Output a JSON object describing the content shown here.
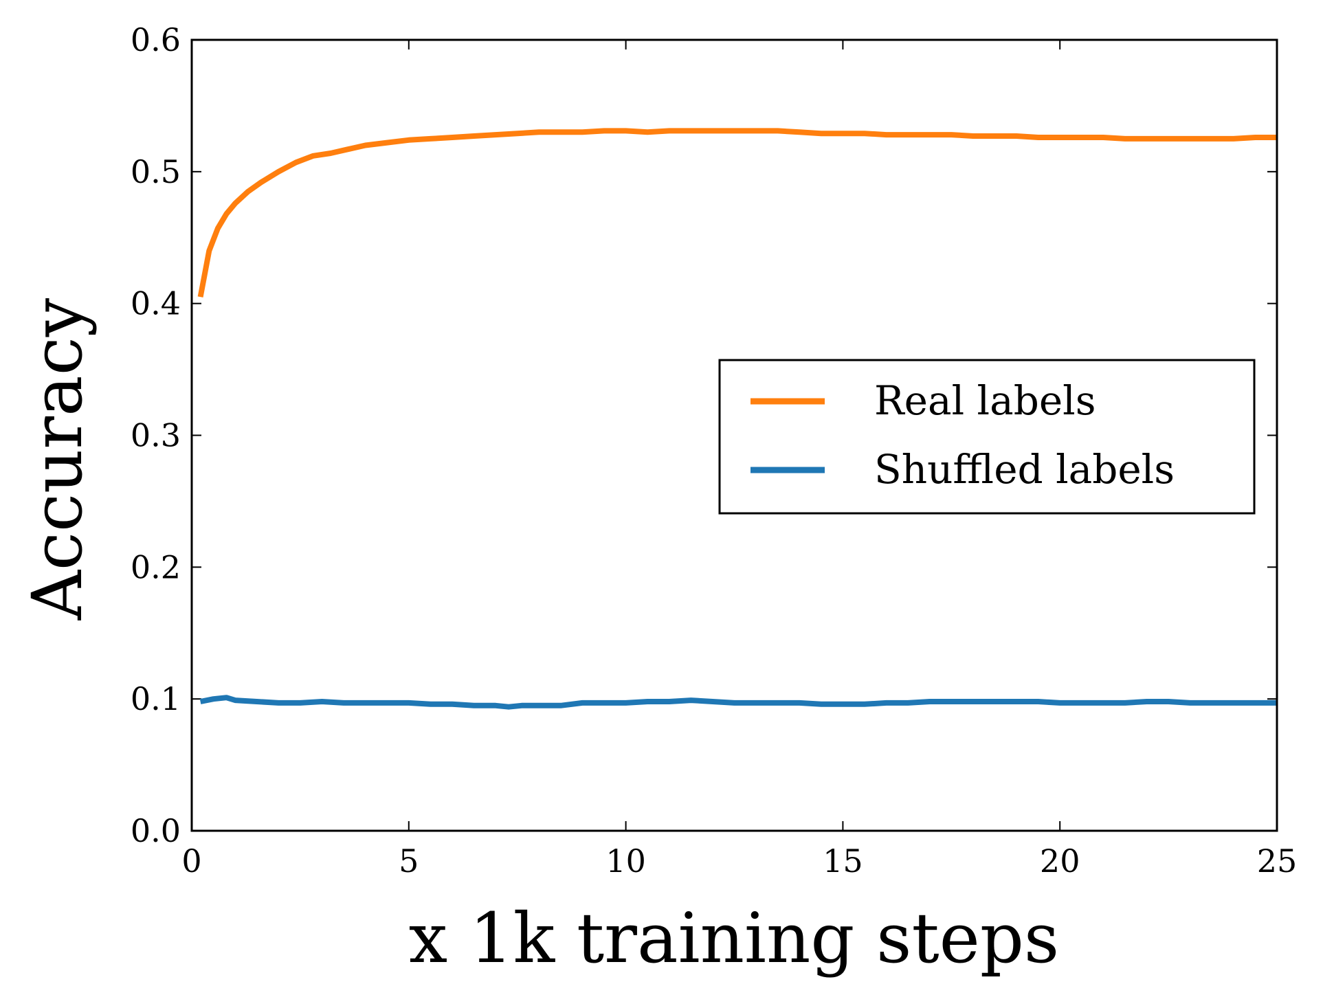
{
  "chart_data": {
    "type": "line",
    "title": "",
    "xlabel": "x 1k training steps",
    "ylabel": "Accuracy",
    "xlim": [
      0,
      25
    ],
    "ylim": [
      0.0,
      0.6
    ],
    "x_ticks": [
      0,
      5,
      10,
      15,
      20,
      25
    ],
    "x_tick_labels": [
      "0",
      "5",
      "10",
      "15",
      "20",
      "25"
    ],
    "y_ticks": [
      0.0,
      0.1,
      0.2,
      0.3,
      0.4,
      0.5,
      0.6
    ],
    "y_tick_labels": [
      "0.0",
      "0.1",
      "0.2",
      "0.3",
      "0.4",
      "0.5",
      "0.6"
    ],
    "grid": false,
    "legend": {
      "placement": "center-right"
    },
    "series": [
      {
        "name": "Real labels",
        "color": "#ff7f0e",
        "x": [
          0.2,
          0.4,
          0.6,
          0.8,
          1.0,
          1.3,
          1.6,
          2.0,
          2.4,
          2.8,
          3.2,
          3.6,
          4.0,
          4.5,
          5.0,
          5.5,
          6.0,
          6.5,
          7.0,
          7.5,
          8.0,
          8.5,
          9.0,
          9.5,
          10.0,
          10.5,
          11.0,
          11.5,
          12.0,
          12.5,
          13.0,
          13.5,
          14.0,
          14.5,
          15.0,
          15.5,
          16.0,
          16.5,
          17.0,
          17.5,
          18.0,
          18.5,
          19.0,
          19.5,
          20.0,
          20.5,
          21.0,
          21.5,
          22.0,
          22.5,
          23.0,
          23.5,
          24.0,
          24.5,
          25.0
        ],
        "values": [
          0.405,
          0.44,
          0.457,
          0.468,
          0.476,
          0.485,
          0.492,
          0.5,
          0.507,
          0.512,
          0.514,
          0.517,
          0.52,
          0.522,
          0.524,
          0.525,
          0.526,
          0.527,
          0.528,
          0.529,
          0.53,
          0.53,
          0.53,
          0.531,
          0.531,
          0.53,
          0.531,
          0.531,
          0.531,
          0.531,
          0.531,
          0.531,
          0.53,
          0.529,
          0.529,
          0.529,
          0.528,
          0.528,
          0.528,
          0.528,
          0.527,
          0.527,
          0.527,
          0.526,
          0.526,
          0.526,
          0.526,
          0.525,
          0.525,
          0.525,
          0.525,
          0.525,
          0.525,
          0.526,
          0.526
        ]
      },
      {
        "name": "Shuffled labels",
        "color": "#1f77b4",
        "x": [
          0.2,
          0.5,
          0.8,
          1.0,
          1.5,
          2.0,
          2.5,
          3.0,
          3.5,
          4.0,
          4.5,
          5.0,
          5.5,
          6.0,
          6.5,
          7.0,
          7.3,
          7.6,
          8.0,
          8.5,
          9.0,
          9.5,
          10.0,
          10.5,
          11.0,
          11.5,
          12.0,
          12.5,
          13.0,
          13.5,
          14.0,
          14.5,
          15.0,
          15.5,
          16.0,
          16.5,
          17.0,
          17.5,
          18.0,
          18.5,
          19.0,
          19.5,
          20.0,
          20.5,
          21.0,
          21.5,
          22.0,
          22.5,
          23.0,
          23.5,
          24.0,
          24.5,
          25.0
        ],
        "values": [
          0.098,
          0.1,
          0.101,
          0.099,
          0.098,
          0.097,
          0.097,
          0.098,
          0.097,
          0.097,
          0.097,
          0.097,
          0.096,
          0.096,
          0.095,
          0.095,
          0.094,
          0.095,
          0.095,
          0.095,
          0.097,
          0.097,
          0.097,
          0.098,
          0.098,
          0.099,
          0.098,
          0.097,
          0.097,
          0.097,
          0.097,
          0.096,
          0.096,
          0.096,
          0.097,
          0.097,
          0.098,
          0.098,
          0.098,
          0.098,
          0.098,
          0.098,
          0.097,
          0.097,
          0.097,
          0.097,
          0.098,
          0.098,
          0.097,
          0.097,
          0.097,
          0.097,
          0.097
        ]
      }
    ]
  }
}
